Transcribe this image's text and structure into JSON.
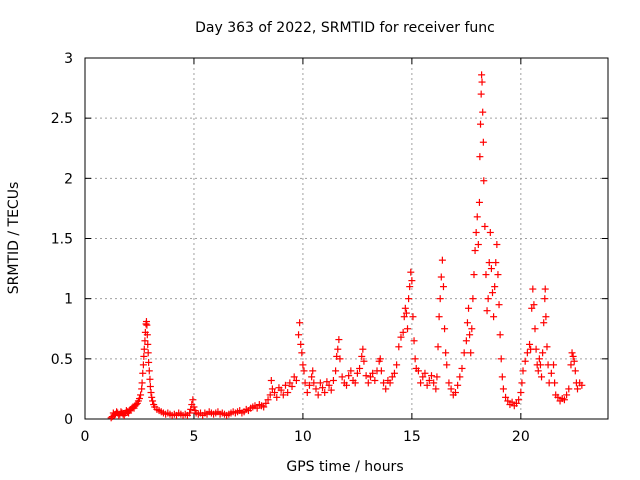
{
  "chart_data": {
    "type": "scatter",
    "title": "Day 363 of 2022, SRMTID for receiver func",
    "xlabel": "GPS time / hours",
    "ylabel": "SRMTID / TECUs",
    "xlim": [
      0,
      24
    ],
    "ylim": [
      0,
      3
    ],
    "xticks": [
      0,
      5,
      10,
      15,
      20
    ],
    "xtick_labels": [
      "0",
      "5",
      "10",
      "15",
      "20"
    ],
    "yticks": [
      0,
      0.5,
      1,
      1.5,
      2,
      2.5,
      3
    ],
    "ytick_labels": [
      "0",
      "0.5",
      "1",
      "1.5",
      "2",
      "2.5",
      "3"
    ],
    "grid": true,
    "marker": "+",
    "color": "#ff0000",
    "series": [
      {
        "name": "SRMTID",
        "points": [
          [
            1.2,
            0.01
          ],
          [
            1.25,
            0.02
          ],
          [
            1.3,
            0.05
          ],
          [
            1.35,
            0.03
          ],
          [
            1.4,
            0.04
          ],
          [
            1.45,
            0.06
          ],
          [
            1.5,
            0.05
          ],
          [
            1.55,
            0.03
          ],
          [
            1.6,
            0.04
          ],
          [
            1.65,
            0.06
          ],
          [
            1.7,
            0.05
          ],
          [
            1.75,
            0.04
          ],
          [
            1.8,
            0.03
          ],
          [
            1.85,
            0.05
          ],
          [
            1.9,
            0.07
          ],
          [
            1.95,
            0.06
          ],
          [
            2.0,
            0.05
          ],
          [
            2.05,
            0.07
          ],
          [
            2.1,
            0.08
          ],
          [
            2.15,
            0.09
          ],
          [
            2.2,
            0.1
          ],
          [
            2.25,
            0.09
          ],
          [
            2.3,
            0.11
          ],
          [
            2.35,
            0.12
          ],
          [
            2.4,
            0.13
          ],
          [
            2.45,
            0.15
          ],
          [
            2.5,
            0.17
          ],
          [
            2.55,
            0.2
          ],
          [
            2.6,
            0.25
          ],
          [
            2.62,
            0.3
          ],
          [
            2.65,
            0.38
          ],
          [
            2.68,
            0.45
          ],
          [
            2.7,
            0.52
          ],
          [
            2.72,
            0.58
          ],
          [
            2.75,
            0.65
          ],
          [
            2.77,
            0.72
          ],
          [
            2.8,
            0.79
          ],
          [
            2.82,
            0.81
          ],
          [
            2.84,
            0.78
          ],
          [
            2.86,
            0.7
          ],
          [
            2.88,
            0.62
          ],
          [
            2.9,
            0.55
          ],
          [
            2.92,
            0.47
          ],
          [
            2.95,
            0.4
          ],
          [
            2.98,
            0.33
          ],
          [
            3.0,
            0.27
          ],
          [
            3.03,
            0.22
          ],
          [
            3.06,
            0.18
          ],
          [
            3.1,
            0.15
          ],
          [
            3.15,
            0.12
          ],
          [
            3.2,
            0.1
          ],
          [
            3.3,
            0.08
          ],
          [
            3.4,
            0.07
          ],
          [
            3.5,
            0.06
          ],
          [
            3.6,
            0.05
          ],
          [
            3.7,
            0.04
          ],
          [
            3.8,
            0.05
          ],
          [
            3.9,
            0.04
          ],
          [
            4.0,
            0.03
          ],
          [
            4.1,
            0.04
          ],
          [
            4.2,
            0.03
          ],
          [
            4.3,
            0.05
          ],
          [
            4.4,
            0.04
          ],
          [
            4.5,
            0.03
          ],
          [
            4.6,
            0.04
          ],
          [
            4.7,
            0.03
          ],
          [
            4.8,
            0.05
          ],
          [
            4.85,
            0.08
          ],
          [
            4.9,
            0.12
          ],
          [
            4.95,
            0.16
          ],
          [
            5.0,
            0.1
          ],
          [
            5.05,
            0.07
          ],
          [
            5.1,
            0.05
          ],
          [
            5.2,
            0.04
          ],
          [
            5.3,
            0.05
          ],
          [
            5.4,
            0.03
          ],
          [
            5.5,
            0.05
          ],
          [
            5.6,
            0.04
          ],
          [
            5.7,
            0.06
          ],
          [
            5.8,
            0.05
          ],
          [
            5.9,
            0.04
          ],
          [
            6.0,
            0.05
          ],
          [
            6.1,
            0.06
          ],
          [
            6.2,
            0.04
          ],
          [
            6.3,
            0.05
          ],
          [
            6.4,
            0.04
          ],
          [
            6.5,
            0.03
          ],
          [
            6.6,
            0.04
          ],
          [
            6.7,
            0.05
          ],
          [
            6.8,
            0.06
          ],
          [
            6.9,
            0.05
          ],
          [
            7.0,
            0.06
          ],
          [
            7.1,
            0.07
          ],
          [
            7.2,
            0.05
          ],
          [
            7.3,
            0.06
          ],
          [
            7.4,
            0.08
          ],
          [
            7.5,
            0.07
          ],
          [
            7.6,
            0.09
          ],
          [
            7.7,
            0.1
          ],
          [
            7.8,
            0.11
          ],
          [
            7.9,
            0.09
          ],
          [
            8.0,
            0.12
          ],
          [
            8.1,
            0.11
          ],
          [
            8.2,
            0.1
          ],
          [
            8.3,
            0.13
          ],
          [
            8.4,
            0.16
          ],
          [
            8.5,
            0.2
          ],
          [
            8.55,
            0.32
          ],
          [
            8.6,
            0.25
          ],
          [
            8.7,
            0.22
          ],
          [
            8.8,
            0.18
          ],
          [
            8.9,
            0.26
          ],
          [
            9.0,
            0.24
          ],
          [
            9.1,
            0.2
          ],
          [
            9.2,
            0.28
          ],
          [
            9.3,
            0.22
          ],
          [
            9.4,
            0.3
          ],
          [
            9.5,
            0.27
          ],
          [
            9.6,
            0.35
          ],
          [
            9.7,
            0.32
          ],
          [
            9.8,
            0.7
          ],
          [
            9.85,
            0.8
          ],
          [
            9.9,
            0.62
          ],
          [
            9.95,
            0.55
          ],
          [
            10.0,
            0.45
          ],
          [
            10.05,
            0.4
          ],
          [
            10.1,
            0.3
          ],
          [
            10.2,
            0.22
          ],
          [
            10.3,
            0.28
          ],
          [
            10.4,
            0.35
          ],
          [
            10.45,
            0.4
          ],
          [
            10.5,
            0.3
          ],
          [
            10.6,
            0.25
          ],
          [
            10.7,
            0.2
          ],
          [
            10.8,
            0.3
          ],
          [
            10.9,
            0.26
          ],
          [
            11.0,
            0.22
          ],
          [
            11.1,
            0.31
          ],
          [
            11.2,
            0.28
          ],
          [
            11.3,
            0.24
          ],
          [
            11.4,
            0.32
          ],
          [
            11.5,
            0.4
          ],
          [
            11.55,
            0.52
          ],
          [
            11.6,
            0.58
          ],
          [
            11.65,
            0.66
          ],
          [
            11.7,
            0.5
          ],
          [
            11.8,
            0.35
          ],
          [
            11.9,
            0.3
          ],
          [
            12.0,
            0.28
          ],
          [
            12.1,
            0.36
          ],
          [
            12.2,
            0.4
          ],
          [
            12.3,
            0.32
          ],
          [
            12.4,
            0.3
          ],
          [
            12.5,
            0.38
          ],
          [
            12.6,
            0.42
          ],
          [
            12.7,
            0.52
          ],
          [
            12.75,
            0.58
          ],
          [
            12.8,
            0.48
          ],
          [
            12.9,
            0.36
          ],
          [
            13.0,
            0.3
          ],
          [
            13.1,
            0.35
          ],
          [
            13.2,
            0.38
          ],
          [
            13.3,
            0.32
          ],
          [
            13.4,
            0.4
          ],
          [
            13.5,
            0.48
          ],
          [
            13.55,
            0.5
          ],
          [
            13.6,
            0.4
          ],
          [
            13.7,
            0.3
          ],
          [
            13.8,
            0.25
          ],
          [
            13.9,
            0.32
          ],
          [
            14.0,
            0.3
          ],
          [
            14.1,
            0.35
          ],
          [
            14.2,
            0.38
          ],
          [
            14.3,
            0.45
          ],
          [
            14.4,
            0.6
          ],
          [
            14.5,
            0.68
          ],
          [
            14.6,
            0.72
          ],
          [
            14.65,
            0.85
          ],
          [
            14.7,
            0.92
          ],
          [
            14.75,
            0.88
          ],
          [
            14.8,
            0.75
          ],
          [
            14.85,
            1.0
          ],
          [
            14.9,
            1.1
          ],
          [
            14.95,
            1.22
          ],
          [
            15.0,
            1.15
          ],
          [
            15.05,
            0.85
          ],
          [
            15.1,
            0.65
          ],
          [
            15.15,
            0.5
          ],
          [
            15.2,
            0.42
          ],
          [
            15.3,
            0.4
          ],
          [
            15.4,
            0.3
          ],
          [
            15.5,
            0.35
          ],
          [
            15.6,
            0.38
          ],
          [
            15.7,
            0.28
          ],
          [
            15.8,
            0.32
          ],
          [
            15.9,
            0.36
          ],
          [
            16.0,
            0.3
          ],
          [
            16.1,
            0.25
          ],
          [
            16.15,
            0.35
          ],
          [
            16.2,
            0.6
          ],
          [
            16.25,
            0.85
          ],
          [
            16.3,
            1.0
          ],
          [
            16.35,
            1.18
          ],
          [
            16.4,
            1.32
          ],
          [
            16.45,
            1.1
          ],
          [
            16.5,
            0.75
          ],
          [
            16.55,
            0.55
          ],
          [
            16.6,
            0.45
          ],
          [
            16.7,
            0.3
          ],
          [
            16.8,
            0.25
          ],
          [
            16.9,
            0.2
          ],
          [
            17.0,
            0.22
          ],
          [
            17.1,
            0.28
          ],
          [
            17.2,
            0.35
          ],
          [
            17.3,
            0.42
          ],
          [
            17.4,
            0.55
          ],
          [
            17.5,
            0.65
          ],
          [
            17.55,
            0.8
          ],
          [
            17.6,
            0.92
          ],
          [
            17.65,
            0.7
          ],
          [
            17.7,
            0.55
          ],
          [
            17.75,
            0.75
          ],
          [
            17.8,
            1.0
          ],
          [
            17.85,
            1.2
          ],
          [
            17.9,
            1.4
          ],
          [
            17.95,
            1.55
          ],
          [
            18.0,
            1.68
          ],
          [
            18.05,
            1.45
          ],
          [
            18.1,
            1.8
          ],
          [
            18.12,
            2.18
          ],
          [
            18.15,
            2.45
          ],
          [
            18.18,
            2.7
          ],
          [
            18.2,
            2.86
          ],
          [
            18.22,
            2.8
          ],
          [
            18.25,
            2.55
          ],
          [
            18.28,
            2.3
          ],
          [
            18.3,
            1.98
          ],
          [
            18.35,
            1.6
          ],
          [
            18.4,
            1.2
          ],
          [
            18.45,
            0.9
          ],
          [
            18.5,
            1.0
          ],
          [
            18.55,
            1.3
          ],
          [
            18.6,
            1.55
          ],
          [
            18.65,
            1.25
          ],
          [
            18.7,
            1.05
          ],
          [
            18.75,
            0.85
          ],
          [
            18.8,
            1.1
          ],
          [
            18.85,
            1.3
          ],
          [
            18.9,
            1.45
          ],
          [
            18.95,
            1.2
          ],
          [
            19.0,
            0.95
          ],
          [
            19.05,
            0.7
          ],
          [
            19.1,
            0.5
          ],
          [
            19.15,
            0.35
          ],
          [
            19.2,
            0.25
          ],
          [
            19.3,
            0.18
          ],
          [
            19.4,
            0.15
          ],
          [
            19.5,
            0.12
          ],
          [
            19.6,
            0.14
          ],
          [
            19.7,
            0.11
          ],
          [
            19.8,
            0.13
          ],
          [
            19.9,
            0.16
          ],
          [
            20.0,
            0.22
          ],
          [
            20.05,
            0.3
          ],
          [
            20.1,
            0.4
          ],
          [
            20.2,
            0.48
          ],
          [
            20.3,
            0.55
          ],
          [
            20.4,
            0.62
          ],
          [
            20.45,
            0.58
          ],
          [
            20.5,
            0.92
          ],
          [
            20.55,
            1.08
          ],
          [
            20.6,
            0.95
          ],
          [
            20.65,
            0.75
          ],
          [
            20.7,
            0.58
          ],
          [
            20.75,
            0.45
          ],
          [
            20.8,
            0.4
          ],
          [
            20.85,
            0.5
          ],
          [
            20.9,
            0.45
          ],
          [
            20.95,
            0.35
          ],
          [
            21.0,
            0.55
          ],
          [
            21.05,
            0.8
          ],
          [
            21.1,
            1.0
          ],
          [
            21.12,
            1.08
          ],
          [
            21.15,
            0.85
          ],
          [
            21.2,
            0.6
          ],
          [
            21.25,
            0.45
          ],
          [
            21.3,
            0.3
          ],
          [
            21.4,
            0.38
          ],
          [
            21.5,
            0.45
          ],
          [
            21.55,
            0.3
          ],
          [
            21.6,
            0.2
          ],
          [
            21.7,
            0.18
          ],
          [
            21.8,
            0.15
          ],
          [
            21.9,
            0.17
          ],
          [
            22.0,
            0.16
          ],
          [
            22.1,
            0.2
          ],
          [
            22.2,
            0.25
          ],
          [
            22.3,
            0.45
          ],
          [
            22.35,
            0.55
          ],
          [
            22.4,
            0.52
          ],
          [
            22.45,
            0.48
          ],
          [
            22.5,
            0.4
          ],
          [
            22.55,
            0.3
          ],
          [
            22.6,
            0.25
          ],
          [
            22.7,
            0.3
          ],
          [
            22.8,
            0.28
          ]
        ]
      }
    ]
  }
}
